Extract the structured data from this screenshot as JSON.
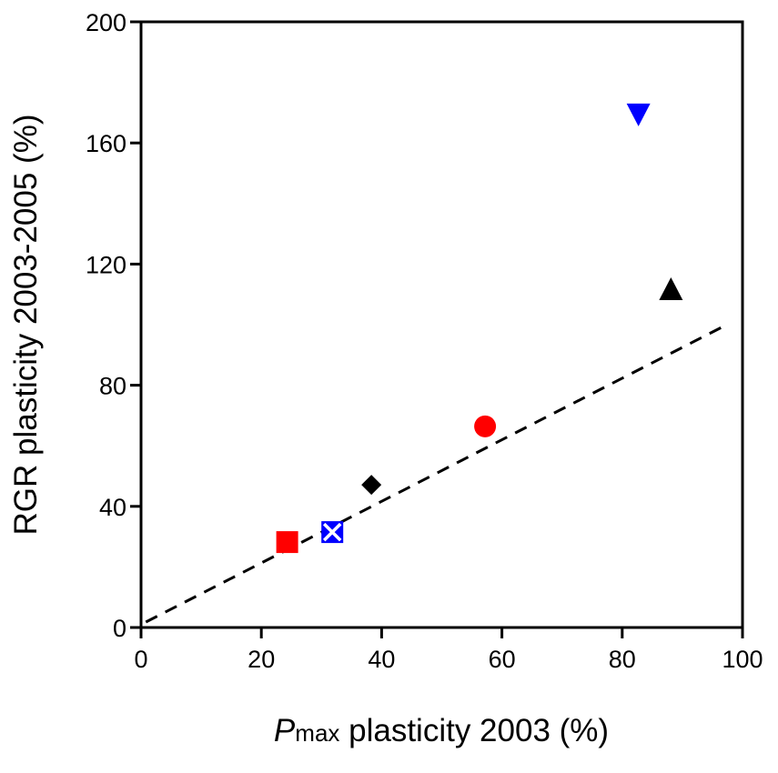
{
  "chart_data": {
    "type": "scatter",
    "xlabel_italic": "P",
    "xlabel_sub": "max",
    "xlabel_rest": " plasticity 2003 (%)",
    "ylabel": "RGR plasticity 2003-2005 (%)",
    "xlim": [
      0,
      100
    ],
    "ylim": [
      0,
      200
    ],
    "xticks": [
      0,
      20,
      40,
      60,
      80,
      100
    ],
    "yticks": [
      0,
      40,
      80,
      120,
      160,
      200
    ],
    "grid": false,
    "points": [
      {
        "x": 24.3,
        "y": 28.2,
        "marker": "square",
        "color": "#ff0000"
      },
      {
        "x": 31.8,
        "y": 31.5,
        "marker": "crossed-square",
        "color": "#0000ff"
      },
      {
        "x": 38.3,
        "y": 47.1,
        "marker": "diamond",
        "color": "#000000"
      },
      {
        "x": 57.2,
        "y": 66.4,
        "marker": "circle",
        "color": "#ff0000"
      },
      {
        "x": 82.7,
        "y": 169.4,
        "marker": "triangle-down",
        "color": "#0000ff"
      },
      {
        "x": 88.1,
        "y": 111.7,
        "marker": "triangle-up",
        "color": "#000000"
      }
    ],
    "trend_line": {
      "style": "dashed",
      "color": "#000000",
      "from": [
        0.8,
        1.8
      ],
      "to": [
        97.1,
        99.7
      ]
    }
  }
}
